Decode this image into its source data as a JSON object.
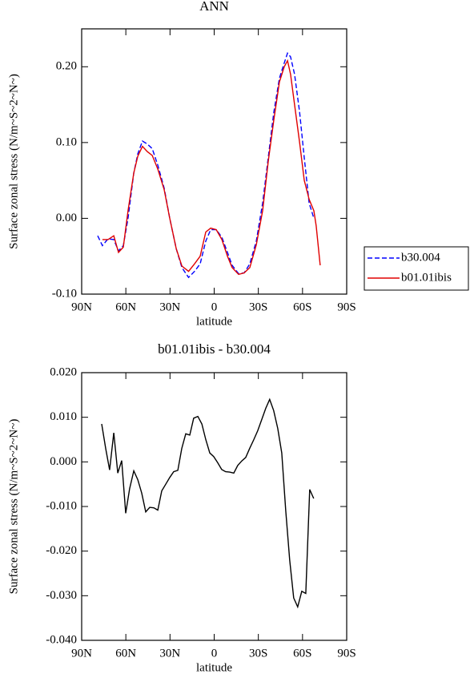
{
  "chart_data": [
    {
      "type": "line",
      "title": "ANN",
      "xlabel": "latitude",
      "ylabel": "Surface zonal stress (N/m~S~2~N~)",
      "xlim": [
        90,
        -90
      ],
      "xticks": [
        {
          "value": 90,
          "label": "90N"
        },
        {
          "value": 60,
          "label": "60N"
        },
        {
          "value": 30,
          "label": "30N"
        },
        {
          "value": 0,
          "label": "0"
        },
        {
          "value": -30,
          "label": "30S"
        },
        {
          "value": -60,
          "label": "60S"
        },
        {
          "value": -90,
          "label": "90S"
        }
      ],
      "ylim": [
        -0.1,
        0.25
      ],
      "yticks": [
        {
          "value": -0.1,
          "label": "-0.10"
        },
        {
          "value": 0,
          "label": "0.00"
        },
        {
          "value": 0.1,
          "label": "0.10"
        },
        {
          "value": 0.2,
          "label": "0.20"
        }
      ],
      "legend": "right",
      "series": [
        {
          "name": "b30.004",
          "color": "#0000ff",
          "dash": true,
          "x": [
            79.1,
            75.9,
            72.1,
            68.2,
            65.0,
            61.7,
            58.5,
            54.6,
            51.9,
            48.7,
            45.4,
            42.1,
            38.3,
            34.0,
            30.2,
            25.8,
            21.9,
            17.4,
            13.3,
            9.5,
            5.7,
            2.4,
            -1.4,
            -5.2,
            -9.0,
            -12.2,
            -16.6,
            -20.4,
            -24.2,
            -28.6,
            -32.9,
            -36.7,
            -40.5,
            -44.3,
            -47.6,
            -49.8,
            -51.9,
            -54.6,
            -58.0,
            -61.2,
            -64.5,
            -67.7
          ],
          "values": [
            -0.023,
            -0.036,
            -0.027,
            -0.028,
            -0.043,
            -0.036,
            0.0,
            0.06,
            0.085,
            0.102,
            0.098,
            0.092,
            0.07,
            0.04,
            0.0,
            -0.04,
            -0.065,
            -0.078,
            -0.07,
            -0.06,
            -0.03,
            -0.015,
            -0.015,
            -0.025,
            -0.045,
            -0.062,
            -0.073,
            -0.072,
            -0.06,
            -0.03,
            0.02,
            0.08,
            0.14,
            0.185,
            0.205,
            0.218,
            0.213,
            0.19,
            0.14,
            0.08,
            0.02,
            0.0
          ]
        },
        {
          "name": "b01.01ibis",
          "color": "#e00000",
          "dash": false,
          "x": [
            75.9,
            72.1,
            68.2,
            65.0,
            61.7,
            58.5,
            54.6,
            51.9,
            48.7,
            45.4,
            42.1,
            38.3,
            34.0,
            30.2,
            25.8,
            21.9,
            17.4,
            13.3,
            9.5,
            5.7,
            2.4,
            -1.4,
            -5.2,
            -9.0,
            -12.2,
            -16.6,
            -20.4,
            -24.2,
            -28.6,
            -32.9,
            -36.7,
            -40.5,
            -44.3,
            -47.6,
            -49.8,
            -51.9,
            -54.6,
            -58.0,
            -61.2,
            -64.5,
            -67.7,
            -69.3,
            -72.0
          ],
          "values": [
            -0.028,
            -0.028,
            -0.023,
            -0.045,
            -0.038,
            0.01,
            0.06,
            0.082,
            0.095,
            0.088,
            0.083,
            0.065,
            0.038,
            0.0,
            -0.04,
            -0.063,
            -0.07,
            -0.06,
            -0.05,
            -0.018,
            -0.013,
            -0.015,
            -0.028,
            -0.05,
            -0.065,
            -0.074,
            -0.072,
            -0.065,
            -0.035,
            0.01,
            0.075,
            0.13,
            0.18,
            0.2,
            0.208,
            0.19,
            0.15,
            0.1,
            0.05,
            0.025,
            0.01,
            -0.01,
            -0.062
          ]
        }
      ]
    },
    {
      "type": "line",
      "title": "b01.01ibis - b30.004",
      "xlabel": "latitude",
      "ylabel": "Surface zonal stress (N/m~S~2~N~)",
      "xlim": [
        90,
        -90
      ],
      "xticks": [
        {
          "value": 90,
          "label": "90N"
        },
        {
          "value": 60,
          "label": "60N"
        },
        {
          "value": 30,
          "label": "30N"
        },
        {
          "value": 0,
          "label": "0"
        },
        {
          "value": -30,
          "label": "30S"
        },
        {
          "value": -60,
          "label": "60S"
        },
        {
          "value": -90,
          "label": "90S"
        }
      ],
      "ylim": [
        -0.04,
        0.02
      ],
      "yticks": [
        {
          "value": -0.04,
          "label": "-0.040"
        },
        {
          "value": -0.03,
          "label": "-0.030"
        },
        {
          "value": -0.02,
          "label": "-0.020"
        },
        {
          "value": -0.01,
          "label": "-0.010"
        },
        {
          "value": 0,
          "label": "0.000"
        },
        {
          "value": 0.01,
          "label": "0.010"
        },
        {
          "value": 0.02,
          "label": "0.020"
        }
      ],
      "color": "#000000",
      "x": [
        76.4,
        73.7,
        71.0,
        68.2,
        65.5,
        62.8,
        60.1,
        57.4,
        54.6,
        51.9,
        49.2,
        46.5,
        43.8,
        41.0,
        38.3,
        35.6,
        32.9,
        30.2,
        27.5,
        24.7,
        22.0,
        19.3,
        16.6,
        13.9,
        11.1,
        8.4,
        5.7,
        3.0,
        0.3,
        -2.4,
        -5.1,
        -7.8,
        -10.5,
        -13.3,
        -16.0,
        -18.7,
        -21.4,
        -24.1,
        -26.9,
        -29.6,
        -32.3,
        -35.0,
        -37.7,
        -40.4,
        -43.2,
        -45.9,
        -48.6,
        -51.3,
        -54.0,
        -56.7,
        -59.5,
        -62.2,
        -64.9,
        -67.6
      ],
      "values": [
        0.0085,
        0.003,
        -0.0018,
        0.0065,
        -0.0025,
        0.0003,
        -0.0115,
        -0.006,
        -0.002,
        -0.004,
        -0.007,
        -0.0112,
        -0.0102,
        -0.0103,
        -0.0108,
        -0.0065,
        -0.005,
        -0.0035,
        -0.0022,
        -0.0019,
        0.003,
        0.0063,
        0.006,
        0.0098,
        0.0102,
        0.0085,
        0.005,
        0.002,
        0.0012,
        -0.0002,
        -0.0017,
        -0.0022,
        -0.0023,
        -0.0025,
        -0.0008,
        0.0002,
        0.001,
        0.003,
        0.005,
        0.007,
        0.0095,
        0.012,
        0.014,
        0.0115,
        0.0075,
        0.002,
        -0.011,
        -0.022,
        -0.0305,
        -0.0325,
        -0.029,
        -0.0295,
        -0.0062,
        -0.0082
      ]
    }
  ]
}
